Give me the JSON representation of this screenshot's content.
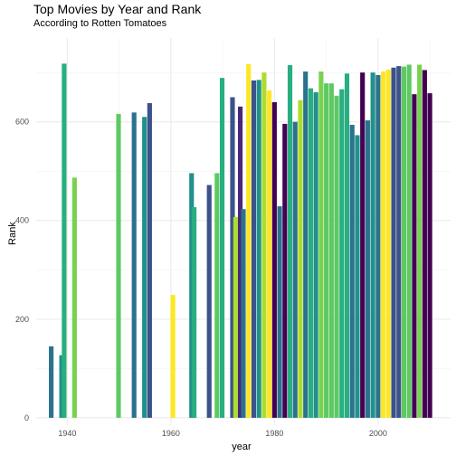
{
  "chart_data": {
    "type": "bar",
    "title": "Top Movies by Year and Rank",
    "subtitle": "According to Rotten Tomatoes",
    "xlabel": "year",
    "ylabel": "Rank",
    "xlim": [
      1934,
      2014
    ],
    "ylim": [
      -15,
      770
    ],
    "x_ticks": [
      1940,
      1960,
      1980,
      2000
    ],
    "y_ticks": [
      0,
      200,
      400,
      600
    ],
    "grid": true,
    "legend": "none",
    "bars": [
      {
        "x": 1936.9,
        "value": 145,
        "color": "#2c728e"
      },
      {
        "x": 1938.9,
        "value": 127,
        "color": "#21918c"
      },
      {
        "x": 1939.4,
        "value": 718,
        "color": "#28ae80"
      },
      {
        "x": 1941.4,
        "value": 487,
        "color": "#7ad151"
      },
      {
        "x": 1949.9,
        "value": 616,
        "color": "#5ec962"
      },
      {
        "x": 1952.9,
        "value": 619,
        "color": "#2c728e"
      },
      {
        "x": 1954.9,
        "value": 610,
        "color": "#21918c"
      },
      {
        "x": 1955.9,
        "value": 638,
        "color": "#3b528b"
      },
      {
        "x": 1960.4,
        "value": 249,
        "color": "#fde725"
      },
      {
        "x": 1964.0,
        "value": 496,
        "color": "#21918c"
      },
      {
        "x": 1964.5,
        "value": 427,
        "color": "#28ae80"
      },
      {
        "x": 1967.4,
        "value": 472,
        "color": "#3b528b"
      },
      {
        "x": 1968.9,
        "value": 496,
        "color": "#5ec962"
      },
      {
        "x": 1969.9,
        "value": 689,
        "color": "#28ae80"
      },
      {
        "x": 1971.9,
        "value": 650,
        "color": "#3b528b"
      },
      {
        "x": 1972.5,
        "value": 407,
        "color": "#addc30"
      },
      {
        "x": 1973.4,
        "value": 631,
        "color": "#482878"
      },
      {
        "x": 1974.0,
        "value": 423,
        "color": "#2c728e"
      },
      {
        "x": 1975.0,
        "value": 717,
        "color": "#fde725"
      },
      {
        "x": 1976.0,
        "value": 684,
        "color": "#3b528b"
      },
      {
        "x": 1977.0,
        "value": 685,
        "color": "#21918c"
      },
      {
        "x": 1978.0,
        "value": 700,
        "color": "#addc30"
      },
      {
        "x": 1979.0,
        "value": 664,
        "color": "#fde725"
      },
      {
        "x": 1980.0,
        "value": 640,
        "color": "#440154"
      },
      {
        "x": 1981.0,
        "value": 429,
        "color": "#2c728e"
      },
      {
        "x": 1982.0,
        "value": 596,
        "color": "#440154"
      },
      {
        "x": 1983.0,
        "value": 715,
        "color": "#28ae80"
      },
      {
        "x": 1984.0,
        "value": 600,
        "color": "#2c728e"
      },
      {
        "x": 1985.0,
        "value": 644,
        "color": "#addc30"
      },
      {
        "x": 1986.0,
        "value": 702,
        "color": "#2c728e"
      },
      {
        "x": 1987.0,
        "value": 668,
        "color": "#28ae80"
      },
      {
        "x": 1988.0,
        "value": 660,
        "color": "#21918c"
      },
      {
        "x": 1989.0,
        "value": 702,
        "color": "#7ad151"
      },
      {
        "x": 1990.0,
        "value": 678,
        "color": "#5ec962"
      },
      {
        "x": 1991.0,
        "value": 678,
        "color": "#5ec962"
      },
      {
        "x": 1992.0,
        "value": 653,
        "color": "#5ec962"
      },
      {
        "x": 1993.0,
        "value": 666,
        "color": "#28ae80"
      },
      {
        "x": 1994.0,
        "value": 698,
        "color": "#28ae80"
      },
      {
        "x": 1995.0,
        "value": 594,
        "color": "#2c728e"
      },
      {
        "x": 1996.0,
        "value": 573,
        "color": "#21918c"
      },
      {
        "x": 1997.0,
        "value": 700,
        "color": "#440154"
      },
      {
        "x": 1998.0,
        "value": 603,
        "color": "#2c728e"
      },
      {
        "x": 1999.0,
        "value": 700,
        "color": "#21918c"
      },
      {
        "x": 2000.0,
        "value": 695,
        "color": "#2c728e"
      },
      {
        "x": 2001.0,
        "value": 702,
        "color": "#fde725"
      },
      {
        "x": 2002.0,
        "value": 706,
        "color": "#fde725"
      },
      {
        "x": 2003.0,
        "value": 710,
        "color": "#3b528b"
      },
      {
        "x": 2004.0,
        "value": 713,
        "color": "#3b528b"
      },
      {
        "x": 2005.0,
        "value": 712,
        "color": "#5ec962"
      },
      {
        "x": 2006.0,
        "value": 716,
        "color": "#5ec962"
      },
      {
        "x": 2007.0,
        "value": 656,
        "color": "#440154"
      },
      {
        "x": 2008.0,
        "value": 716,
        "color": "#7ad151"
      },
      {
        "x": 2009.0,
        "value": 705,
        "color": "#440154"
      },
      {
        "x": 2010.0,
        "value": 658,
        "color": "#440154"
      }
    ]
  }
}
